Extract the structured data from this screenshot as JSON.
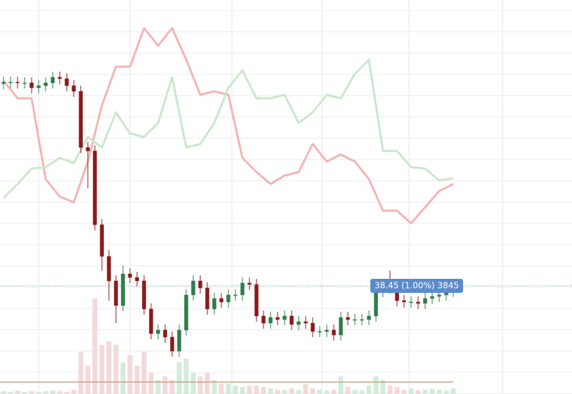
{
  "chart_data": {
    "type": "candlestick",
    "annotation": "38.45 (1.00%) 3845",
    "open": [
      52.85,
      52.95,
      52.95,
      52.9,
      52.9,
      52.55,
      52.7,
      52.9,
      53.3,
      53.2,
      52.7,
      52.3,
      48.3,
      48.05,
      42.8,
      40.55,
      38.8,
      37.05,
      39.3,
      39.05,
      38.8,
      36.8,
      35.05,
      35.3,
      34.8,
      33.8,
      35.3,
      37.8,
      38.8,
      38.3,
      36.8,
      37.55,
      37.3,
      37.8,
      37.8,
      38.65,
      38.55,
      36.3,
      35.8,
      36.2,
      36.05,
      36.3,
      35.7,
      35.9,
      35.8,
      35.2,
      35.2,
      35.3,
      34.95,
      36.2,
      36.05,
      36.05,
      36.05,
      36.3,
      38.05,
      38.55,
      38.3,
      37.4,
      37.3,
      37.3,
      37.2,
      37.55,
      37.7,
      37.8,
      38.07
    ],
    "high": [
      53.35,
      53.35,
      53.35,
      53.3,
      53.3,
      53.1,
      53.3,
      53.7,
      53.7,
      53.6,
      53.1,
      52.7,
      48.7,
      48.45,
      43.2,
      41.0,
      39.2,
      39.9,
      39.7,
      39.45,
      39.2,
      37.2,
      35.7,
      35.7,
      35.2,
      35.7,
      38.2,
      39.2,
      39.2,
      38.7,
      37.95,
      37.95,
      38.2,
      38.2,
      39.05,
      39.05,
      38.95,
      36.7,
      36.6,
      36.6,
      36.7,
      36.7,
      36.3,
      36.3,
      36.2,
      35.6,
      35.7,
      35.7,
      36.6,
      36.6,
      36.45,
      36.45,
      36.7,
      38.45,
      38.95,
      39.55,
      38.7,
      37.8,
      37.7,
      37.7,
      37.95,
      38.1,
      38.2,
      38.47,
      38.85
    ],
    "low": [
      52.45,
      52.55,
      52.5,
      52.5,
      52.15,
      52.15,
      52.3,
      52.5,
      52.8,
      52.3,
      51.9,
      47.9,
      45.4,
      42.4,
      39.5,
      37.4,
      35.8,
      36.65,
      38.65,
      38.4,
      36.4,
      34.65,
      34.65,
      34.4,
      33.4,
      33.4,
      34.9,
      37.4,
      37.9,
      36.4,
      36.4,
      36.9,
      36.9,
      37.4,
      37.4,
      38.15,
      35.9,
      35.4,
      35.4,
      35.65,
      35.65,
      35.3,
      35.3,
      35.4,
      34.8,
      34.8,
      34.8,
      34.55,
      34.55,
      35.65,
      35.65,
      35.65,
      35.65,
      35.9,
      37.65,
      37.9,
      37.0,
      36.9,
      36.9,
      36.8,
      36.8,
      37.15,
      37.3,
      37.4,
      37.67
    ],
    "close": [
      52.95,
      52.95,
      52.9,
      52.9,
      52.55,
      52.7,
      52.9,
      53.3,
      53.2,
      52.7,
      52.3,
      48.3,
      48.05,
      42.8,
      40.55,
      38.8,
      37.05,
      39.3,
      39.05,
      38.8,
      36.8,
      35.05,
      35.3,
      34.8,
      33.8,
      35.3,
      37.8,
      38.8,
      38.3,
      36.8,
      37.55,
      37.3,
      37.8,
      37.8,
      38.65,
      38.55,
      36.3,
      35.8,
      36.2,
      36.05,
      36.3,
      35.7,
      35.9,
      35.8,
      35.2,
      35.2,
      35.3,
      34.95,
      36.2,
      36.05,
      36.05,
      36.05,
      36.3,
      38.05,
      38.55,
      38.3,
      37.4,
      37.3,
      37.3,
      37.2,
      37.55,
      37.7,
      37.8,
      38.07,
      38.45
    ],
    "volume": [
      1880,
      1410,
      2350,
      1410,
      1880,
      1410,
      1880,
      2350,
      1880,
      1410,
      2820,
      28200,
      18800,
      63920,
      32900,
      35250,
      32900,
      21150,
      25850,
      18800,
      28200,
      14100,
      9400,
      11750,
      9400,
      21150,
      23500,
      14100,
      11750,
      14100,
      9400,
      7050,
      7050,
      5640,
      4700,
      5640,
      5640,
      4700,
      3760,
      2820,
      2820,
      3760,
      2820,
      6580,
      3760,
      2820,
      2350,
      2820,
      11750,
      4700,
      2820,
      2350,
      5640,
      11750,
      9400,
      5640,
      4700,
      2820,
      3760,
      2350,
      2820,
      3290,
      2820,
      2350,
      3845
    ],
    "up_color": "#2f7d4a",
    "down_color": "#8b1a1a",
    "volume_up_color": "#d3ecd8",
    "volume_down_color": "#f3dada",
    "overlays": [
      {
        "color": "#f2b5b3",
        "x": [
          0,
          2,
          4,
          6,
          8,
          10,
          12,
          14,
          16,
          18,
          20,
          22,
          24,
          26,
          28,
          30,
          32,
          34,
          36,
          38,
          40,
          42,
          44,
          46,
          48,
          50,
          52,
          54,
          56,
          58,
          60,
          62,
          64
        ],
        "values": [
          53.05,
          51.8,
          51.8,
          46.05,
          44.8,
          44.4,
          47.3,
          51.3,
          54.05,
          54.05,
          56.8,
          55.55,
          56.8,
          54.55,
          52.05,
          52.3,
          52.05,
          47.55,
          46.55,
          45.7,
          46.3,
          46.55,
          48.55,
          47.3,
          47.8,
          47.3,
          46.05,
          43.8,
          43.8,
          42.9,
          44.05,
          45.2,
          45.7
        ]
      },
      {
        "color": "#c9e7cc",
        "x": [
          0,
          2,
          4,
          6,
          8,
          10,
          12,
          14,
          16,
          18,
          20,
          22,
          24,
          26,
          28,
          30,
          32,
          34,
          36,
          38,
          40,
          42,
          44,
          46,
          48,
          50,
          52,
          54,
          56,
          58,
          60,
          62,
          64
        ],
        "values": [
          44.7,
          45.7,
          46.8,
          46.9,
          47.55,
          47.2,
          49.05,
          48.3,
          50.8,
          49.3,
          49.05,
          50.05,
          53.3,
          48.3,
          48.55,
          50.05,
          52.55,
          53.8,
          51.8,
          51.8,
          52.05,
          50.05,
          50.8,
          52.05,
          51.8,
          53.55,
          54.55,
          48.05,
          48.05,
          46.9,
          46.8,
          45.95,
          46.1
        ]
      }
    ],
    "label_color": "#5b8bc9",
    "xlim": [
      -0.5,
      80.9
    ],
    "ylim": [
      30.75,
      58.8
    ],
    "y2lim": [
      0,
      75000
    ],
    "grid": true
  }
}
